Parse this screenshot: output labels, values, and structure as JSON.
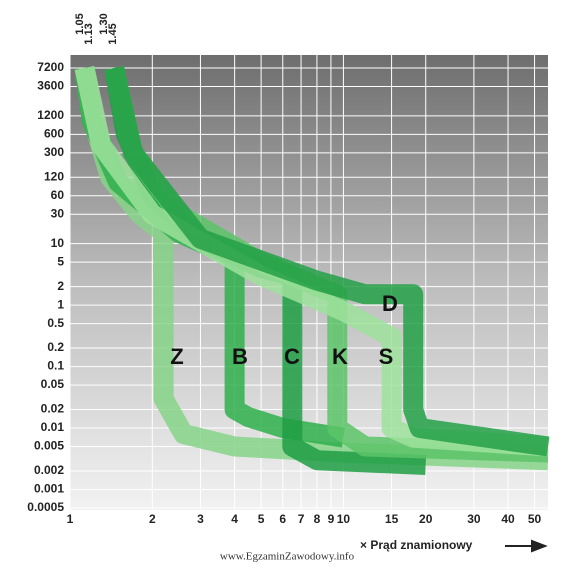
{
  "chart_data": {
    "type": "line",
    "x_label": "× Prąd znamionowy",
    "top_labels": [
      "1.05",
      "1.13",
      "1.30",
      "1.45"
    ],
    "watermark": "www.EgzaminZawodowy.info",
    "log_x": true,
    "log_y": true,
    "grid": true,
    "xlim": [
      1,
      56
    ],
    "ylim": [
      0.0005,
      7200
    ],
    "xticks": [
      1,
      2,
      3,
      4,
      5,
      6,
      7,
      8,
      9,
      10,
      15,
      20,
      30,
      40,
      50
    ],
    "yticks": [
      7200,
      3600,
      1200,
      600,
      300,
      120,
      60,
      30,
      10,
      5,
      2,
      1,
      0.5,
      0.2,
      0.1,
      0.05,
      0.02,
      0.01,
      0.005,
      0.002,
      0.001,
      0.0005
    ],
    "series": [
      {
        "name": "Z",
        "color": "#86d488",
        "x": [
          1.13,
          1.2,
          1.4,
          1.8,
          2.2,
          2.2,
          2.6,
          4,
          10,
          56
        ],
        "values": [
          7200,
          1200,
          120,
          30,
          15,
          0.03,
          0.008,
          0.005,
          0.004,
          0.003
        ]
      },
      {
        "name": "B",
        "color": "#2fb04c",
        "x": [
          1.13,
          1.2,
          1.5,
          2.5,
          4,
          4,
          4.5,
          6,
          10
        ],
        "values": [
          7200,
          1000,
          100,
          15,
          6,
          0.02,
          0.015,
          0.01,
          0.007
        ]
      },
      {
        "name": "C",
        "color": "#1f9e44",
        "x": [
          1.45,
          1.6,
          2,
          3,
          5,
          6.5,
          6.5,
          8,
          20
        ],
        "values": [
          7200,
          600,
          60,
          12,
          4,
          3,
          0.005,
          0.003,
          0.0025
        ]
      },
      {
        "name": "K",
        "color": "#5cc468",
        "x": [
          1.45,
          1.7,
          2.5,
          5,
          8,
          9.5,
          9.5,
          12,
          56
        ],
        "values": [
          7200,
          300,
          30,
          5,
          2,
          1.5,
          0.01,
          0.005,
          0.004
        ]
      },
      {
        "name": "S",
        "color": "#9ee29c",
        "x": [
          1.13,
          1.3,
          2,
          5,
          10,
          15,
          15,
          18,
          56
        ],
        "values": [
          7200,
          400,
          30,
          3,
          0.8,
          0.3,
          0.01,
          0.007,
          0.005
        ]
      },
      {
        "name": "D",
        "color": "#23a047",
        "x": [
          1.45,
          1.7,
          3,
          8,
          12,
          18,
          18,
          19,
          56
        ],
        "values": [
          7200,
          300,
          12,
          2.5,
          1.5,
          1.5,
          0.02,
          0.01,
          0.005
        ]
      }
    ]
  }
}
